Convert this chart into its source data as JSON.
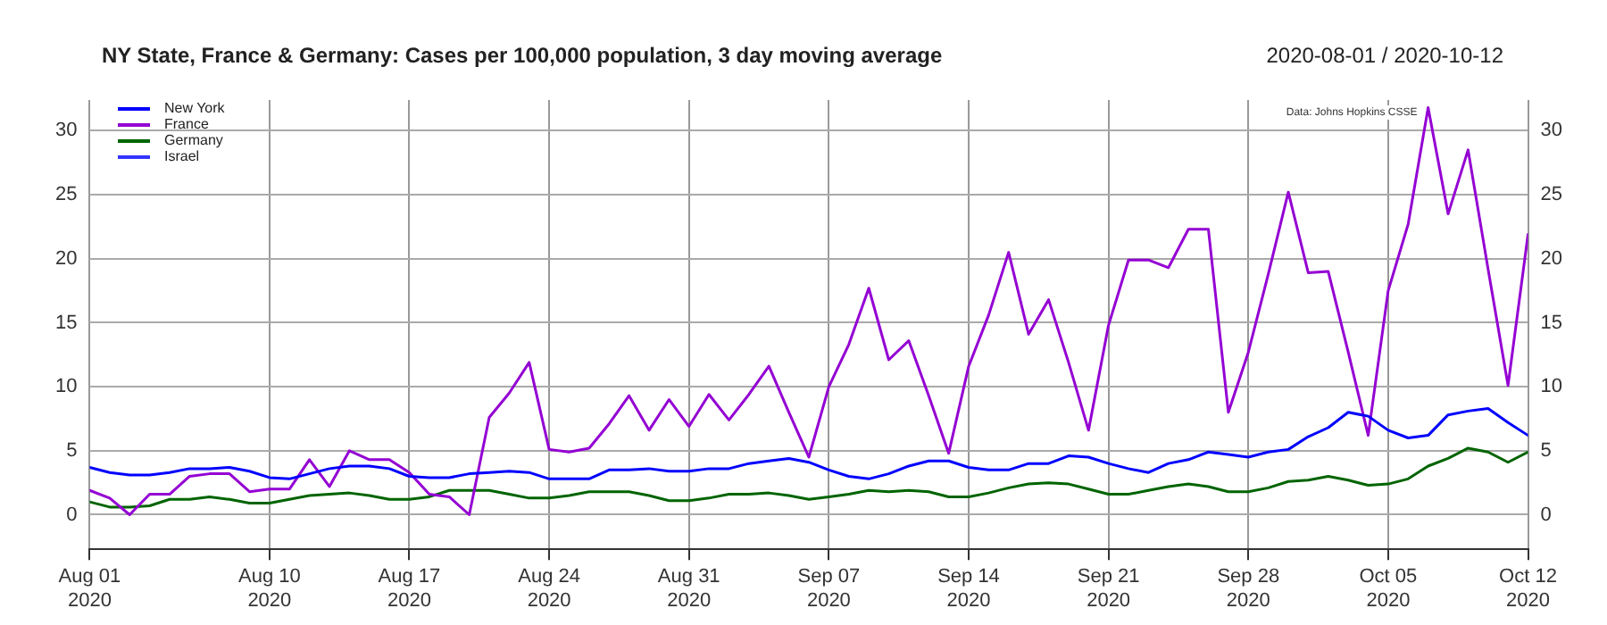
{
  "chart_data": {
    "type": "line",
    "title": "NY State, France & Germany: Cases per 100,000 population, 3 day moving average",
    "subtitle": "2020-08-01 / 2020-10-12",
    "annotations": [
      "Data: Johns Hopkins CSSE"
    ],
    "x": [
      "2020-08-01",
      "2020-08-02",
      "2020-08-03",
      "2020-08-04",
      "2020-08-05",
      "2020-08-06",
      "2020-08-07",
      "2020-08-08",
      "2020-08-09",
      "2020-08-10",
      "2020-08-11",
      "2020-08-12",
      "2020-08-13",
      "2020-08-14",
      "2020-08-15",
      "2020-08-16",
      "2020-08-17",
      "2020-08-18",
      "2020-08-19",
      "2020-08-20",
      "2020-08-21",
      "2020-08-22",
      "2020-08-23",
      "2020-08-24",
      "2020-08-25",
      "2020-08-26",
      "2020-08-27",
      "2020-08-28",
      "2020-08-29",
      "2020-08-30",
      "2020-08-31",
      "2020-09-01",
      "2020-09-02",
      "2020-09-03",
      "2020-09-04",
      "2020-09-05",
      "2020-09-06",
      "2020-09-07",
      "2020-09-08",
      "2020-09-09",
      "2020-09-10",
      "2020-09-11",
      "2020-09-12",
      "2020-09-13",
      "2020-09-14",
      "2020-09-15",
      "2020-09-16",
      "2020-09-17",
      "2020-09-18",
      "2020-09-19",
      "2020-09-20",
      "2020-09-21",
      "2020-09-22",
      "2020-09-23",
      "2020-09-24",
      "2020-09-25",
      "2020-09-26",
      "2020-09-27",
      "2020-09-28",
      "2020-09-29",
      "2020-09-30",
      "2020-10-01",
      "2020-10-02",
      "2020-10-03",
      "2020-10-04",
      "2020-10-05",
      "2020-10-06",
      "2020-10-07",
      "2020-10-08",
      "2020-10-09",
      "2020-10-10",
      "2020-10-11",
      "2020-10-12"
    ],
    "series": [
      {
        "name": "New York",
        "color": "#0000ff",
        "values": [
          3.7,
          3.3,
          3.1,
          3.1,
          3.3,
          3.6,
          3.6,
          3.7,
          3.4,
          2.9,
          2.8,
          3.2,
          3.6,
          3.8,
          3.8,
          3.6,
          3.0,
          2.9,
          2.9,
          3.2,
          3.3,
          3.4,
          3.3,
          2.8,
          2.8,
          2.8,
          3.5,
          3.5,
          3.6,
          3.4,
          3.4,
          3.6,
          3.6,
          4.0,
          4.2,
          4.4,
          4.1,
          3.5,
          3.0,
          2.8,
          3.2,
          3.8,
          4.2,
          4.2,
          3.7,
          3.5,
          3.5,
          4.0,
          4.0,
          4.6,
          4.5,
          4.0,
          3.6,
          3.3,
          4.0,
          4.3,
          4.9,
          4.7,
          4.5,
          4.9,
          5.1,
          6.1,
          6.8,
          8.0,
          7.7,
          6.6,
          6.0,
          6.2,
          7.8,
          8.1,
          8.3,
          7.2,
          6.2
        ]
      },
      {
        "name": "France",
        "color": "#9400d3",
        "values": [
          1.9,
          1.3,
          0,
          1.6,
          1.6,
          3.0,
          3.2,
          3.2,
          1.8,
          2.0,
          2.0,
          4.3,
          2.2,
          5.0,
          4.3,
          4.3,
          3.3,
          1.6,
          1.4,
          0,
          7.6,
          9.5,
          11.9,
          5.1,
          4.9,
          5.2,
          7.1,
          9.3,
          6.6,
          9.0,
          6.9,
          9.4,
          7.4,
          9.4,
          11.6,
          8.0,
          4.5,
          10.0,
          13.3,
          17.7,
          12.1,
          13.6,
          9.3,
          4.8,
          11.6,
          15.6,
          20.5,
          14.1,
          16.8,
          11.9,
          6.6,
          14.8,
          19.9,
          19.9,
          19.3,
          22.3,
          22.3,
          8.0,
          12.7,
          18.8,
          25.2,
          18.9,
          19.0,
          12.7,
          6.2,
          17.5,
          22.7,
          31.8,
          23.5,
          28.5,
          19.2,
          10.1,
          21.9
        ]
      },
      {
        "name": "Germany",
        "color": "#006400",
        "values": [
          1.0,
          0.6,
          0.6,
          0.7,
          1.2,
          1.2,
          1.4,
          1.2,
          0.9,
          0.9,
          1.2,
          1.5,
          1.6,
          1.7,
          1.5,
          1.2,
          1.2,
          1.4,
          1.9,
          1.9,
          1.9,
          1.6,
          1.3,
          1.3,
          1.5,
          1.8,
          1.8,
          1.8,
          1.5,
          1.1,
          1.1,
          1.3,
          1.6,
          1.6,
          1.7,
          1.5,
          1.2,
          1.4,
          1.6,
          1.9,
          1.8,
          1.9,
          1.8,
          1.4,
          1.4,
          1.7,
          2.1,
          2.4,
          2.5,
          2.4,
          2.0,
          1.6,
          1.6,
          1.9,
          2.2,
          2.4,
          2.2,
          1.8,
          1.8,
          2.1,
          2.6,
          2.7,
          3.0,
          2.7,
          2.3,
          2.4,
          2.8,
          3.8,
          4.4,
          5.2,
          4.9,
          4.1,
          4.9
        ]
      },
      {
        "name": "Israel",
        "color": "#3333ff",
        "values": [
          null,
          null,
          null,
          null,
          null,
          null,
          null,
          null,
          null,
          null,
          null,
          null,
          null,
          null,
          null,
          null,
          null,
          null,
          null,
          null,
          null,
          null,
          null,
          null,
          null,
          null,
          null,
          null,
          null,
          null,
          null,
          null,
          null,
          null,
          null,
          null,
          null,
          null,
          null,
          null,
          null,
          null,
          null,
          null,
          null,
          null,
          null,
          null,
          null,
          null,
          null,
          null,
          null,
          null,
          null,
          null,
          null,
          null,
          null,
          null,
          null,
          null,
          null,
          null,
          null,
          null,
          null,
          null,
          null,
          null,
          null,
          null,
          null
        ]
      }
    ],
    "xlim": [
      "2020-08-01",
      "2020-10-12"
    ],
    "xticks": [
      {
        "value": "2020-08-01",
        "label": "Aug 01\n2020"
      },
      {
        "value": "2020-08-10",
        "label": "Aug 10\n2020"
      },
      {
        "value": "2020-08-17",
        "label": "Aug 17\n2020"
      },
      {
        "value": "2020-08-24",
        "label": "Aug 24\n2020"
      },
      {
        "value": "2020-08-31",
        "label": "Aug 31\n2020"
      },
      {
        "value": "2020-09-07",
        "label": "Sep 07\n2020"
      },
      {
        "value": "2020-09-14",
        "label": "Sep 14\n2020"
      },
      {
        "value": "2020-09-21",
        "label": "Sep 21\n2020"
      },
      {
        "value": "2020-09-28",
        "label": "Sep 28\n2020"
      },
      {
        "value": "2020-10-05",
        "label": "Oct 05\n2020"
      },
      {
        "value": "2020-10-12",
        "label": "Oct 12\n2020"
      }
    ],
    "ylim": [
      -2.7,
      32.4
    ],
    "yticks": [
      0,
      5,
      10,
      15,
      20,
      25,
      30
    ],
    "y2lim": [
      -2.7,
      32.4
    ],
    "y2ticks": [
      0,
      5,
      10,
      15,
      20,
      25,
      30
    ],
    "grid": true,
    "legend": "top left",
    "marker": "none",
    "line_style": "solid"
  }
}
